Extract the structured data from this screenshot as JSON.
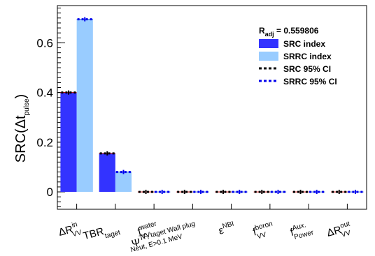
{
  "chart_data": {
    "type": "bar",
    "ylabel": {
      "main": "SRC(",
      "symbol": "Δt",
      "sub": "pulse",
      "close": ")"
    },
    "ylim": [
      -0.07,
      0.75
    ],
    "yticks": [
      0,
      0.2,
      0.4,
      0.6
    ],
    "ytick_labels": [
      "0",
      "0.2",
      "0.4",
      "0.6"
    ],
    "categories": [
      {
        "main": "ΔR",
        "sup": "in",
        "sub": "VV"
      },
      {
        "main": "TBR",
        "sup": "",
        "sub": "taget"
      },
      {
        "main": "f",
        "sup": "water",
        "sub": "VV"
      },
      {
        "main": "Ψ",
        "sup": "TF, taget Wall plug",
        "sub": "Neut, E>0.1 MeV"
      },
      {
        "main": "ε",
        "sup": "NBI",
        "sub": ""
      },
      {
        "main": "f",
        "sup": "boron",
        "sub": "VV"
      },
      {
        "main": "f",
        "sup": "Aux.",
        "sub": "Power"
      },
      {
        "main": "ΔR",
        "sup": "out",
        "sub": "VV"
      }
    ],
    "series": [
      {
        "name": "SRC index",
        "color": "#3333ff",
        "values": [
          0.4,
          0.155,
          0,
          0,
          0,
          0,
          0,
          0
        ]
      },
      {
        "name": "SRRC index",
        "color": "#99ccff",
        "values": [
          0.695,
          0.08,
          0,
          0,
          0,
          0,
          0,
          0
        ]
      }
    ],
    "ci": [
      {
        "name": "SRC 95% CI",
        "color": "#000000",
        "style": "dashed"
      },
      {
        "name": "SRRC 95% CI",
        "color": "#0000ee",
        "style": "dashed"
      }
    ],
    "legend": {
      "title_main": "R",
      "title_sub": "adj",
      "title_value": " = 0.559806",
      "placement": "top-right"
    }
  }
}
